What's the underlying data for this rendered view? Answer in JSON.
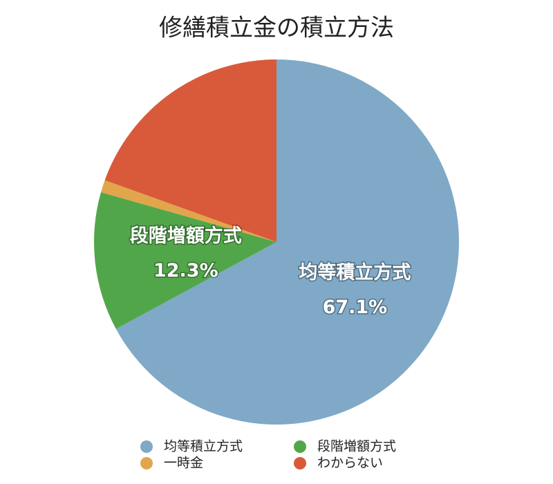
{
  "chart_data": {
    "type": "pie",
    "title": "修繕積立金の積立方法",
    "categories": [
      "均等積立方式",
      "段階増額方式",
      "一時金",
      "わからない"
    ],
    "values": [
      67.1,
      12.3,
      1.1,
      19.5
    ],
    "value_labels": [
      "67.1%",
      "12.3%",
      null,
      null
    ],
    "colors": [
      "#7fa9c6",
      "#52a64a",
      "#e1a64b",
      "#d95a3b"
    ]
  }
}
